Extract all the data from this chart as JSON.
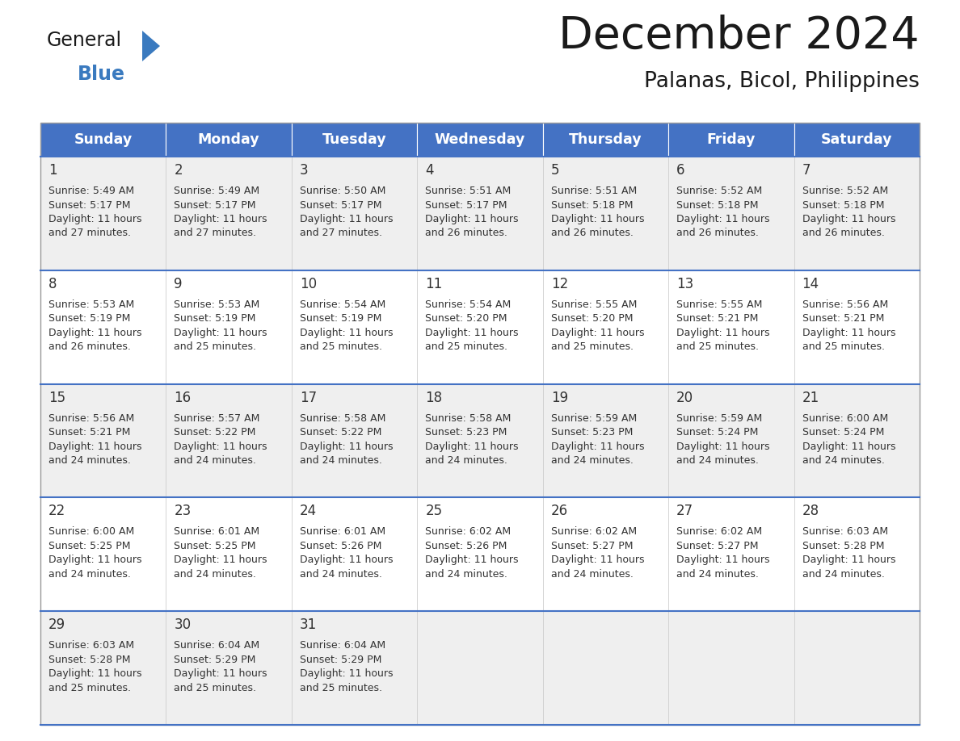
{
  "title": "December 2024",
  "subtitle": "Palanas, Bicol, Philippines",
  "header_color": "#4472C4",
  "header_text_color": "#FFFFFF",
  "cell_bg_color_odd": "#EFEFEF",
  "cell_bg_color_even": "#FFFFFF",
  "days_of_week": [
    "Sunday",
    "Monday",
    "Tuesday",
    "Wednesday",
    "Thursday",
    "Friday",
    "Saturday"
  ],
  "calendar_data": [
    [
      {
        "day": 1,
        "sunrise": "5:49 AM",
        "sunset": "5:17 PM",
        "daylight_hours": 11,
        "daylight_minutes": 27
      },
      {
        "day": 2,
        "sunrise": "5:49 AM",
        "sunset": "5:17 PM",
        "daylight_hours": 11,
        "daylight_minutes": 27
      },
      {
        "day": 3,
        "sunrise": "5:50 AM",
        "sunset": "5:17 PM",
        "daylight_hours": 11,
        "daylight_minutes": 27
      },
      {
        "day": 4,
        "sunrise": "5:51 AM",
        "sunset": "5:17 PM",
        "daylight_hours": 11,
        "daylight_minutes": 26
      },
      {
        "day": 5,
        "sunrise": "5:51 AM",
        "sunset": "5:18 PM",
        "daylight_hours": 11,
        "daylight_minutes": 26
      },
      {
        "day": 6,
        "sunrise": "5:52 AM",
        "sunset": "5:18 PM",
        "daylight_hours": 11,
        "daylight_minutes": 26
      },
      {
        "day": 7,
        "sunrise": "5:52 AM",
        "sunset": "5:18 PM",
        "daylight_hours": 11,
        "daylight_minutes": 26
      }
    ],
    [
      {
        "day": 8,
        "sunrise": "5:53 AM",
        "sunset": "5:19 PM",
        "daylight_hours": 11,
        "daylight_minutes": 26
      },
      {
        "day": 9,
        "sunrise": "5:53 AM",
        "sunset": "5:19 PM",
        "daylight_hours": 11,
        "daylight_minutes": 25
      },
      {
        "day": 10,
        "sunrise": "5:54 AM",
        "sunset": "5:19 PM",
        "daylight_hours": 11,
        "daylight_minutes": 25
      },
      {
        "day": 11,
        "sunrise": "5:54 AM",
        "sunset": "5:20 PM",
        "daylight_hours": 11,
        "daylight_minutes": 25
      },
      {
        "day": 12,
        "sunrise": "5:55 AM",
        "sunset": "5:20 PM",
        "daylight_hours": 11,
        "daylight_minutes": 25
      },
      {
        "day": 13,
        "sunrise": "5:55 AM",
        "sunset": "5:21 PM",
        "daylight_hours": 11,
        "daylight_minutes": 25
      },
      {
        "day": 14,
        "sunrise": "5:56 AM",
        "sunset": "5:21 PM",
        "daylight_hours": 11,
        "daylight_minutes": 25
      }
    ],
    [
      {
        "day": 15,
        "sunrise": "5:56 AM",
        "sunset": "5:21 PM",
        "daylight_hours": 11,
        "daylight_minutes": 24
      },
      {
        "day": 16,
        "sunrise": "5:57 AM",
        "sunset": "5:22 PM",
        "daylight_hours": 11,
        "daylight_minutes": 24
      },
      {
        "day": 17,
        "sunrise": "5:58 AM",
        "sunset": "5:22 PM",
        "daylight_hours": 11,
        "daylight_minutes": 24
      },
      {
        "day": 18,
        "sunrise": "5:58 AM",
        "sunset": "5:23 PM",
        "daylight_hours": 11,
        "daylight_minutes": 24
      },
      {
        "day": 19,
        "sunrise": "5:59 AM",
        "sunset": "5:23 PM",
        "daylight_hours": 11,
        "daylight_minutes": 24
      },
      {
        "day": 20,
        "sunrise": "5:59 AM",
        "sunset": "5:24 PM",
        "daylight_hours": 11,
        "daylight_minutes": 24
      },
      {
        "day": 21,
        "sunrise": "6:00 AM",
        "sunset": "5:24 PM",
        "daylight_hours": 11,
        "daylight_minutes": 24
      }
    ],
    [
      {
        "day": 22,
        "sunrise": "6:00 AM",
        "sunset": "5:25 PM",
        "daylight_hours": 11,
        "daylight_minutes": 24
      },
      {
        "day": 23,
        "sunrise": "6:01 AM",
        "sunset": "5:25 PM",
        "daylight_hours": 11,
        "daylight_minutes": 24
      },
      {
        "day": 24,
        "sunrise": "6:01 AM",
        "sunset": "5:26 PM",
        "daylight_hours": 11,
        "daylight_minutes": 24
      },
      {
        "day": 25,
        "sunrise": "6:02 AM",
        "sunset": "5:26 PM",
        "daylight_hours": 11,
        "daylight_minutes": 24
      },
      {
        "day": 26,
        "sunrise": "6:02 AM",
        "sunset": "5:27 PM",
        "daylight_hours": 11,
        "daylight_minutes": 24
      },
      {
        "day": 27,
        "sunrise": "6:02 AM",
        "sunset": "5:27 PM",
        "daylight_hours": 11,
        "daylight_minutes": 24
      },
      {
        "day": 28,
        "sunrise": "6:03 AM",
        "sunset": "5:28 PM",
        "daylight_hours": 11,
        "daylight_minutes": 24
      }
    ],
    [
      {
        "day": 29,
        "sunrise": "6:03 AM",
        "sunset": "5:28 PM",
        "daylight_hours": 11,
        "daylight_minutes": 25
      },
      {
        "day": 30,
        "sunrise": "6:04 AM",
        "sunset": "5:29 PM",
        "daylight_hours": 11,
        "daylight_minutes": 25
      },
      {
        "day": 31,
        "sunrise": "6:04 AM",
        "sunset": "5:29 PM",
        "daylight_hours": 11,
        "daylight_minutes": 25
      },
      null,
      null,
      null,
      null
    ]
  ],
  "logo_general_color": "#1a1a1a",
  "logo_blue_color": "#3a7abf",
  "logo_triangle_color": "#3a7abf",
  "fig_width": 11.88,
  "fig_height": 9.18,
  "dpi": 100
}
